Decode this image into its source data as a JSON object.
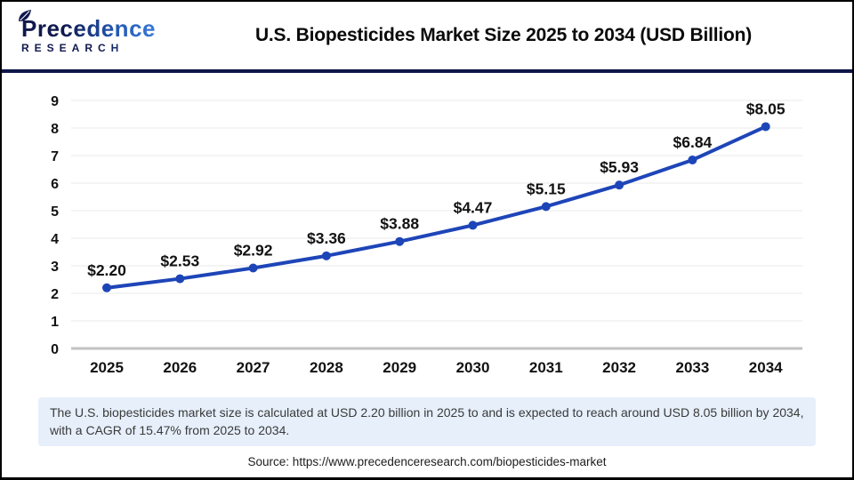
{
  "header": {
    "logo": {
      "brand": "Precedence",
      "sub": "RESEARCH"
    },
    "title": "U.S. Biopesticides Market Size 2025 to 2034 (USD Billion)"
  },
  "chart_data": {
    "type": "line",
    "title": "U.S. Biopesticides Market Size 2025 to 2034 (USD Billion)",
    "x": [
      "2025",
      "2026",
      "2027",
      "2028",
      "2029",
      "2030",
      "2031",
      "2032",
      "2033",
      "2034"
    ],
    "series": [
      {
        "name": "U.S. Biopesticides Market Size (USD Billion)",
        "values": [
          2.2,
          2.53,
          2.92,
          3.36,
          3.88,
          4.47,
          5.15,
          5.93,
          6.84,
          8.05
        ]
      }
    ],
    "point_labels": [
      "$2.20",
      "$2.53",
      "$2.92",
      "$3.36",
      "$3.88",
      "$4.47",
      "$5.15",
      "$5.93",
      "$6.84",
      "$8.05"
    ],
    "xlabel": "",
    "ylabel": "",
    "ylim": [
      0,
      9
    ],
    "ytick_step": 1,
    "grid": true,
    "legend": "none",
    "line_color": "#1e45b8"
  },
  "footer": {
    "note": "The U.S. biopesticides market size is calculated at USD 2.20 billion in 2025 to and is expected to reach around USD 8.05 billion by 2034, with a CAGR of 15.47% from 2025 to 2034.",
    "source": "Source: https://www.precedenceresearch.com/biopesticides-market"
  },
  "colors": {
    "accent_line": "#1e45b8",
    "navy_divider": "#0e1547",
    "note_background": "#e6effa",
    "grid_line": "#f1f1f1",
    "axis_line": "#c2c2c2",
    "text": "#121212"
  }
}
